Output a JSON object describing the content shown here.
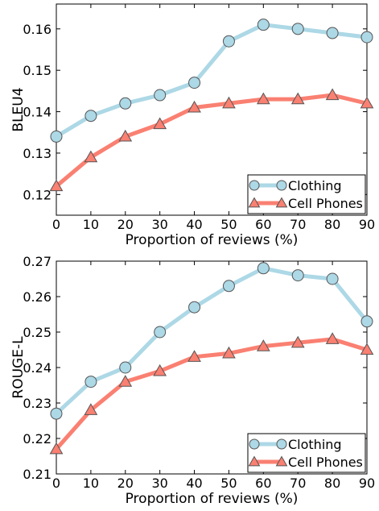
{
  "chart_data": [
    {
      "type": "line",
      "xlabel": "Proportion of reviews (%)",
      "ylabel": "BLEU4",
      "x": [
        0,
        10,
        20,
        30,
        40,
        50,
        60,
        70,
        80,
        90
      ],
      "xlim": [
        0,
        90
      ],
      "ylim": [
        0.115,
        0.166
      ],
      "xticks": [
        "0",
        "10",
        "20",
        "30",
        "40",
        "50",
        "60",
        "70",
        "80",
        "90"
      ],
      "yticks": [
        "0.12",
        "0.13",
        "0.14",
        "0.15",
        "0.16"
      ],
      "grid": false,
      "legend_position": "bottom-right",
      "series": [
        {
          "name": "Clothing",
          "marker": "circle",
          "color": "#add8e6",
          "values": [
            0.134,
            0.139,
            0.142,
            0.144,
            0.147,
            0.157,
            0.161,
            0.16,
            0.159,
            0.158
          ]
        },
        {
          "name": "Cell Phones",
          "marker": "triangle",
          "color": "#fa8072",
          "values": [
            0.122,
            0.129,
            0.134,
            0.137,
            0.141,
            0.142,
            0.143,
            0.143,
            0.144,
            0.142
          ]
        }
      ]
    },
    {
      "type": "line",
      "xlabel": "Proportion of reviews (%)",
      "ylabel": "ROUGE-L",
      "x": [
        0,
        10,
        20,
        30,
        40,
        50,
        60,
        70,
        80,
        90
      ],
      "xlim": [
        0,
        90
      ],
      "ylim": [
        0.21,
        0.27
      ],
      "xticks": [
        "0",
        "10",
        "20",
        "30",
        "40",
        "50",
        "60",
        "70",
        "80",
        "90"
      ],
      "yticks": [
        "0.21",
        "0.22",
        "0.23",
        "0.24",
        "0.25",
        "0.26",
        "0.27"
      ],
      "grid": false,
      "legend_position": "bottom-right",
      "series": [
        {
          "name": "Clothing",
          "marker": "circle",
          "color": "#add8e6",
          "values": [
            0.227,
            0.236,
            0.24,
            0.25,
            0.257,
            0.263,
            0.268,
            0.266,
            0.265,
            0.253
          ]
        },
        {
          "name": "Cell Phones",
          "marker": "triangle",
          "color": "#fa8072",
          "values": [
            0.217,
            0.228,
            0.236,
            0.239,
            0.243,
            0.244,
            0.246,
            0.247,
            0.248,
            0.245
          ]
        }
      ]
    }
  ]
}
